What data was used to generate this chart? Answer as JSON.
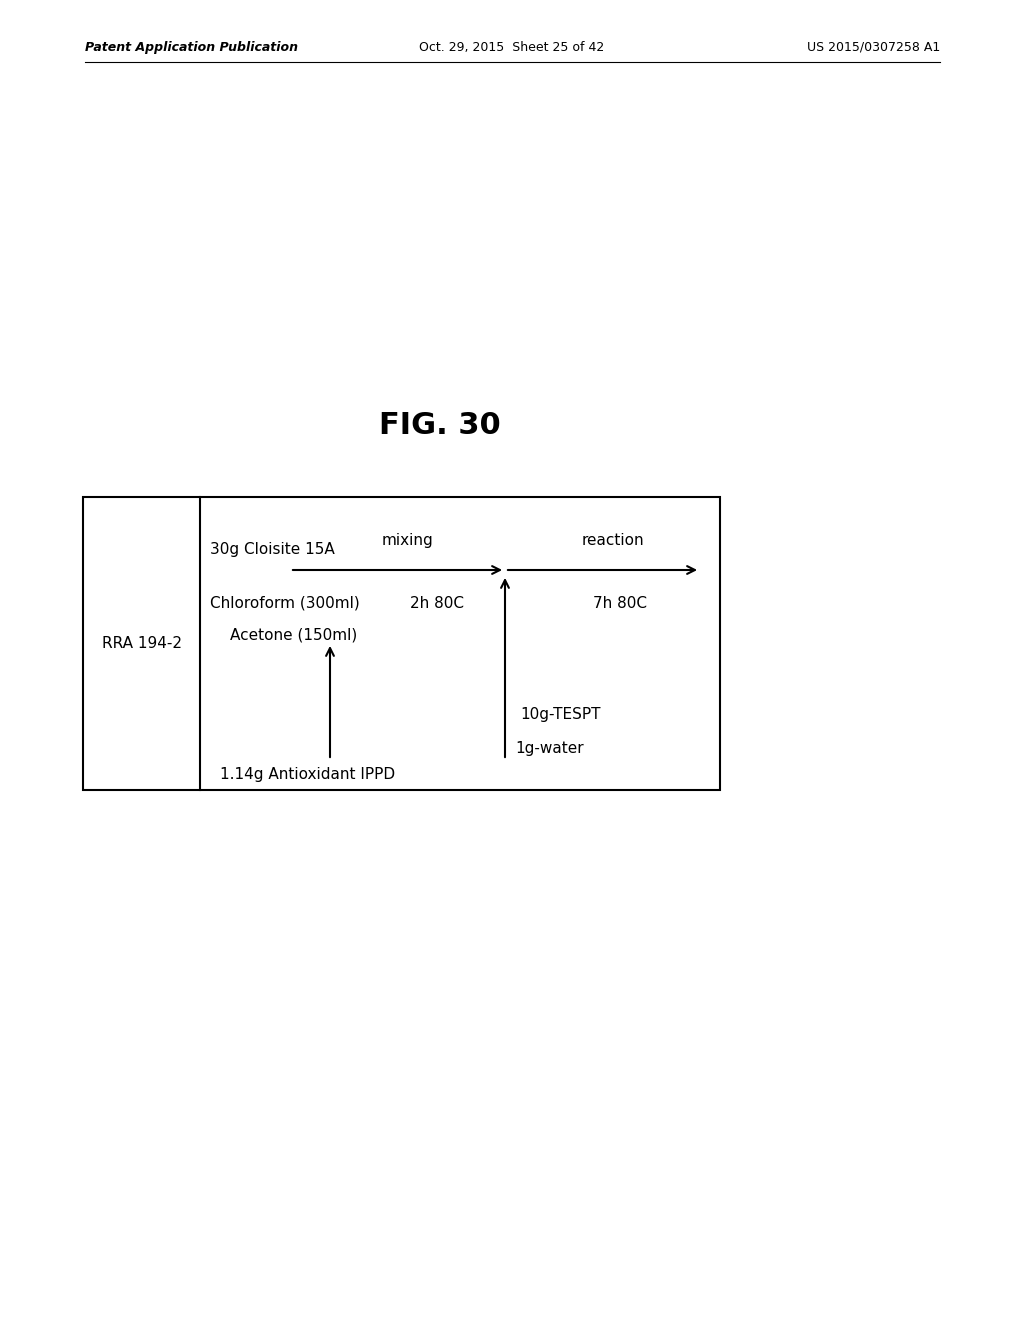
{
  "header_left": "Patent Application Publication",
  "header_center": "Oct. 29, 2015  Sheet 25 of 42",
  "header_right": "US 2015/0307258 A1",
  "figure_title": "FIG. 30",
  "bg_color": "#ffffff",
  "label_rra": "RRA 194-2",
  "texts": {
    "cloisite": "30g Cloisite 15A",
    "chloroform": "Chloroform (300ml)",
    "h_80c_mix": "2h 80C",
    "acetone": "Acetone (150ml)",
    "mixing": "mixing",
    "reaction": "reaction",
    "h_80c_react": "7h 80C",
    "antioxidant": "1.14g Antioxidant IPPD",
    "tespt": "10g-TESPT",
    "water": "1g-water"
  }
}
